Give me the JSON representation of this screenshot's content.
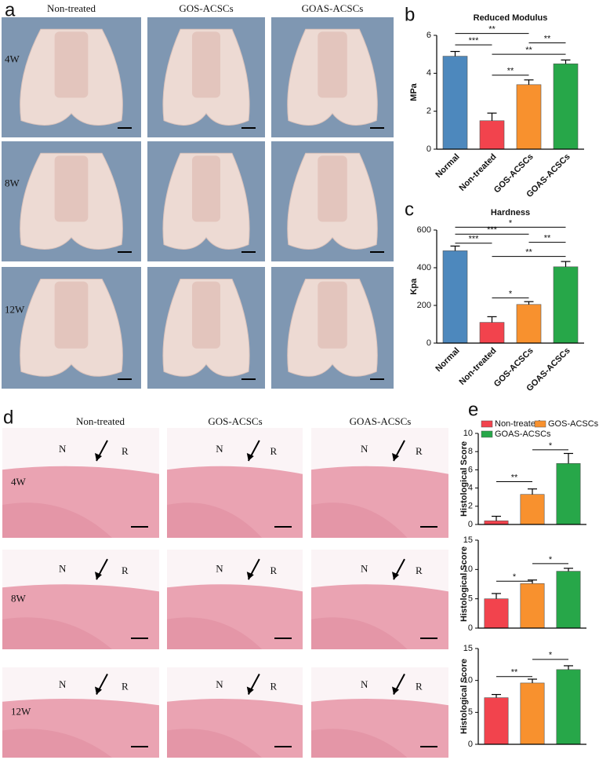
{
  "panel_a": {
    "label": "a",
    "columns": [
      "Non-treated",
      "GOS-ACSCs",
      "GOAS-ACSCs"
    ],
    "rows": [
      "4W",
      "8W",
      "12W"
    ]
  },
  "panel_d": {
    "label": "d",
    "columns": [
      "Non-treated",
      "GOS-ACSCs",
      "GOAS-ACSCs"
    ],
    "rows": [
      "4W",
      "8W",
      "12W"
    ],
    "cells": [
      [
        {
          "left": "N",
          "right": "R"
        },
        {
          "left": "N",
          "right": "R"
        },
        {
          "left": "N",
          "right": "R"
        }
      ],
      [
        {
          "left": "N",
          "right": "R"
        },
        {
          "left": "N",
          "right": "R"
        },
        {
          "left": "N",
          "right": "R"
        }
      ],
      [
        {
          "left": "N",
          "right": "R"
        },
        {
          "left": "N",
          "right": "R"
        },
        {
          "left": "N",
          "right": "R"
        }
      ]
    ]
  },
  "chart_data": [
    {
      "type": "bar",
      "panel": "b",
      "title": "Reduced Modulus",
      "y_label": "MPa",
      "categories": [
        "Normal",
        "Non-treated",
        "GOS-ACSCs",
        "GOAS-ACSCs"
      ],
      "values": [
        4.9,
        1.5,
        3.4,
        4.5
      ],
      "errors": [
        0.25,
        0.4,
        0.25,
        0.2
      ],
      "colors": [
        "#4d88bd",
        "#f2434d",
        "#f8912e",
        "#27a749"
      ],
      "ylim": [
        0,
        6
      ],
      "yticks": [
        0,
        2,
        4,
        6
      ],
      "significance": [
        {
          "x": [
            0,
            2
          ],
          "y": 6.1,
          "label": "**"
        },
        {
          "x": [
            0,
            1
          ],
          "y": 5.5,
          "label": "***"
        },
        {
          "x": [
            2,
            3
          ],
          "y": 5.6,
          "label": "**"
        },
        {
          "x": [
            1,
            3
          ],
          "y": 5.0,
          "label": "**"
        },
        {
          "x": [
            1,
            2
          ],
          "y": 3.9,
          "label": "**"
        }
      ]
    },
    {
      "type": "bar",
      "panel": "c",
      "title": "Hardness",
      "y_label": "Kpa",
      "categories": [
        "Normal",
        "Non-treated",
        "GOS-ACSCs",
        "GOAS-ACSCs"
      ],
      "values": [
        490,
        110,
        205,
        405
      ],
      "errors": [
        25,
        30,
        15,
        28
      ],
      "colors": [
        "#4d88bd",
        "#f2434d",
        "#f8912e",
        "#27a749"
      ],
      "ylim": [
        0,
        600
      ],
      "yticks": [
        0,
        200,
        400,
        600
      ],
      "significance": [
        {
          "x": [
            0,
            3
          ],
          "y": 615,
          "label": "*"
        },
        {
          "x": [
            0,
            2
          ],
          "y": 578,
          "label": "***"
        },
        {
          "x": [
            0,
            1
          ],
          "y": 530,
          "label": "***"
        },
        {
          "x": [
            2,
            3
          ],
          "y": 535,
          "label": "**"
        },
        {
          "x": [
            1,
            3
          ],
          "y": 460,
          "label": "**"
        },
        {
          "x": [
            1,
            2
          ],
          "y": 240,
          "label": "*"
        }
      ]
    },
    {
      "type": "bar",
      "panel": "e",
      "y_label": "Histological Score",
      "series": [
        {
          "name": "Non-treated",
          "color": "#f2434d",
          "values": [
            0.4
          ],
          "errors": [
            0.5
          ]
        },
        {
          "name": "GOS-ACSCs",
          "color": "#f8912e",
          "values": [
            3.3
          ],
          "errors": [
            0.6
          ]
        },
        {
          "name": "GOAS-ACSCs",
          "color": "#27a749",
          "values": [
            6.7
          ],
          "errors": [
            1.1
          ]
        }
      ],
      "ylim": [
        0,
        10
      ],
      "yticks": [
        0,
        2,
        4,
        6,
        8,
        10
      ],
      "significance": [
        {
          "x": [
            0,
            1
          ],
          "y": 4.7,
          "label": "**"
        },
        {
          "x": [
            1,
            2
          ],
          "y": 8.2,
          "label": "*"
        }
      ]
    },
    {
      "type": "bar",
      "y_label": "Histological Score",
      "values": [
        5.0,
        7.6,
        9.7
      ],
      "errors": [
        0.9,
        0.6,
        0.5
      ],
      "colors": [
        "#f2434d",
        "#f8912e",
        "#27a749"
      ],
      "ylim": [
        0,
        15
      ],
      "yticks": [
        0,
        5,
        10,
        15
      ],
      "significance": [
        {
          "x": [
            0,
            1
          ],
          "y": 8.0,
          "label": "*"
        },
        {
          "x": [
            1,
            2
          ],
          "y": 11,
          "label": "*"
        }
      ]
    },
    {
      "type": "bar",
      "y_label": "Histological Score",
      "values": [
        7.3,
        9.6,
        11.7
      ],
      "errors": [
        0.5,
        0.6,
        0.6
      ],
      "colors": [
        "#f2434d",
        "#f8912e",
        "#27a749"
      ],
      "ylim": [
        0,
        15
      ],
      "yticks": [
        0,
        5,
        10,
        15
      ],
      "significance": [
        {
          "x": [
            0,
            1
          ],
          "y": 10.6,
          "label": "**"
        },
        {
          "x": [
            1,
            2
          ],
          "y": 13.3,
          "label": "*"
        }
      ]
    }
  ]
}
